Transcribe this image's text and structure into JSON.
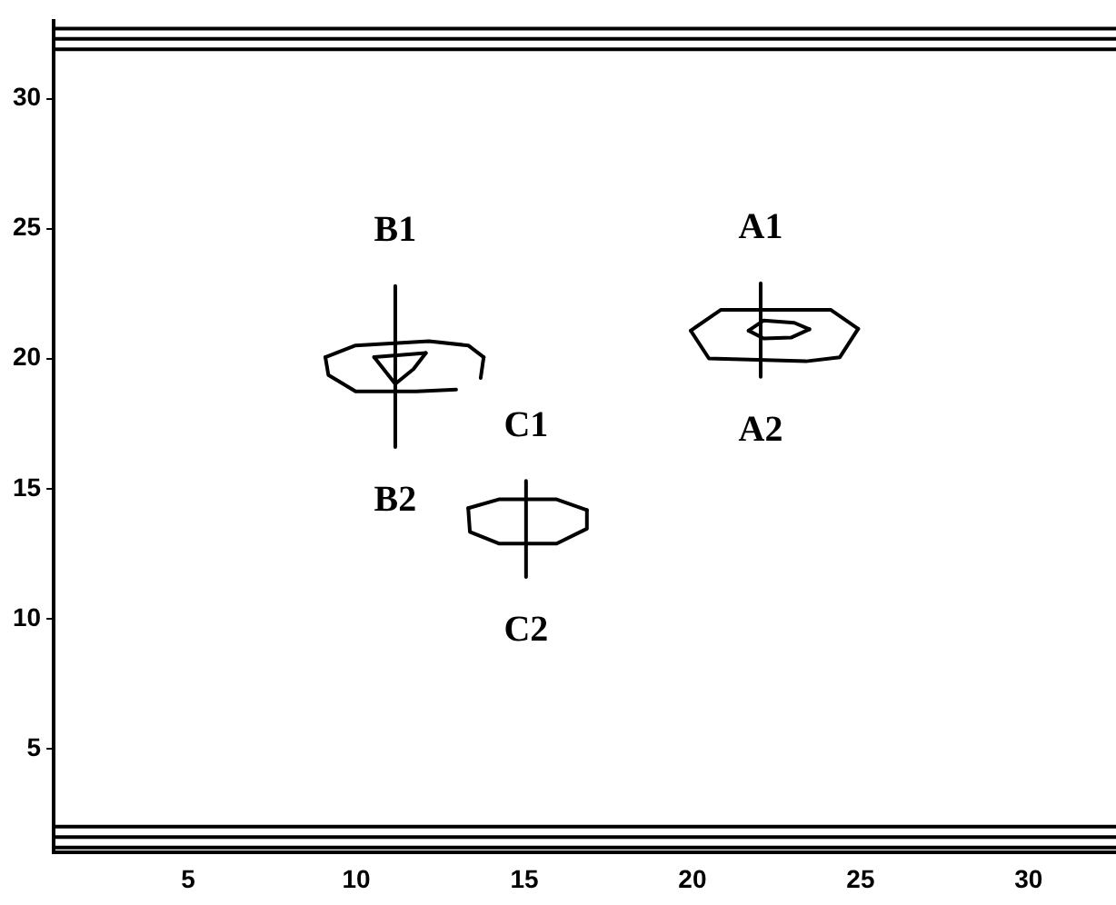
{
  "chart_data": {
    "type": "line",
    "marker": "none",
    "line_style": "solid",
    "grid": false,
    "legend": false,
    "xlim": [
      1,
      32.6
    ],
    "ylim": [
      1,
      33
    ],
    "xticks": [
      5,
      10,
      15,
      20,
      25,
      30
    ],
    "yticks": [
      5,
      10,
      15,
      20,
      25,
      30
    ],
    "series": [
      {
        "color": "#000000",
        "x": [
          19.95,
          20.85,
          24.11,
          24.93
        ],
        "values": [
          21.08,
          21.88,
          21.88,
          21.15
        ]
      },
      {
        "color": "#000000",
        "x": [
          19.95,
          20.49,
          23.38,
          24.38,
          24.93
        ],
        "values": [
          21.08,
          20.01,
          19.9,
          20.05,
          21.15
        ]
      },
      {
        "color": "#000000",
        "x": [
          21.67,
          22.12,
          23.03,
          23.48
        ],
        "values": [
          21.08,
          21.47,
          21.38,
          21.13
        ]
      },
      {
        "color": "#000000",
        "x": [
          21.67,
          22.12,
          22.93,
          23.48
        ],
        "values": [
          21.08,
          20.78,
          20.81,
          21.13
        ]
      },
      {
        "color": "#000000",
        "x": [
          22.03,
          22.03
        ],
        "values": [
          22.9,
          19.3
        ]
      },
      {
        "color": "#000000",
        "x": [
          9.08,
          9.98,
          12.16,
          13.33,
          13.79
        ],
        "values": [
          20.06,
          20.51,
          20.67,
          20.51,
          20.06
        ]
      },
      {
        "color": "#000000",
        "x": [
          13.79,
          13.7
        ],
        "values": [
          20.06,
          19.26
        ]
      },
      {
        "color": "#000000",
        "x": [
          9.08,
          9.17,
          9.98,
          11.79,
          12.97
        ],
        "values": [
          20.06,
          19.37,
          18.74,
          18.74,
          18.81
        ]
      },
      {
        "color": "#000000",
        "x": [
          10.53,
          12.07
        ],
        "values": [
          20.06,
          20.22
        ]
      },
      {
        "color": "#000000",
        "x": [
          10.53,
          11.16,
          11.7,
          12.07
        ],
        "values": [
          20.06,
          19.03,
          19.6,
          20.22
        ]
      },
      {
        "color": "#000000",
        "x": [
          11.16,
          11.16
        ],
        "values": [
          22.8,
          16.6
        ]
      },
      {
        "color": "#000000",
        "x": [
          13.33,
          14.24,
          15.96,
          16.86
        ],
        "values": [
          14.25,
          14.59,
          14.59,
          14.18
        ]
      },
      {
        "color": "#000000",
        "x": [
          13.33,
          13.38,
          14.24,
          15.96,
          16.86,
          16.86
        ],
        "values": [
          14.25,
          13.34,
          12.89,
          12.89,
          13.46,
          14.18
        ]
      },
      {
        "color": "#000000",
        "x": [
          15.05,
          15.05
        ],
        "values": [
          15.3,
          11.6
        ]
      },
      {
        "color": "#000000",
        "x": [
          1,
          32.6
        ],
        "values": [
          31.9,
          31.9
        ]
      },
      {
        "color": "#000000",
        "x": [
          1,
          32.6
        ],
        "values": [
          32.3,
          32.3
        ]
      },
      {
        "color": "#000000",
        "x": [
          1,
          32.6
        ],
        "values": [
          32.7,
          32.7
        ]
      },
      {
        "color": "#000000",
        "x": [
          1,
          32.6
        ],
        "values": [
          1.2,
          1.2
        ]
      },
      {
        "color": "#000000",
        "x": [
          1,
          32.6
        ],
        "values": [
          1.6,
          1.6
        ]
      },
      {
        "color": "#000000",
        "x": [
          1,
          32.6
        ],
        "values": [
          2.0,
          2.0
        ]
      }
    ],
    "annotations": [
      {
        "text": "B1",
        "x": 11.16,
        "y": 22.8
      },
      {
        "text": "A1",
        "x": 22.03,
        "y": 22.9
      },
      {
        "text": "C1",
        "x": 15.05,
        "y": 15.3
      },
      {
        "text": "A2",
        "x": 22.03,
        "y": 19.3
      },
      {
        "text": "B2",
        "x": 11.16,
        "y": 16.6
      },
      {
        "text": "C2",
        "x": 15.05,
        "y": 11.6
      }
    ]
  }
}
